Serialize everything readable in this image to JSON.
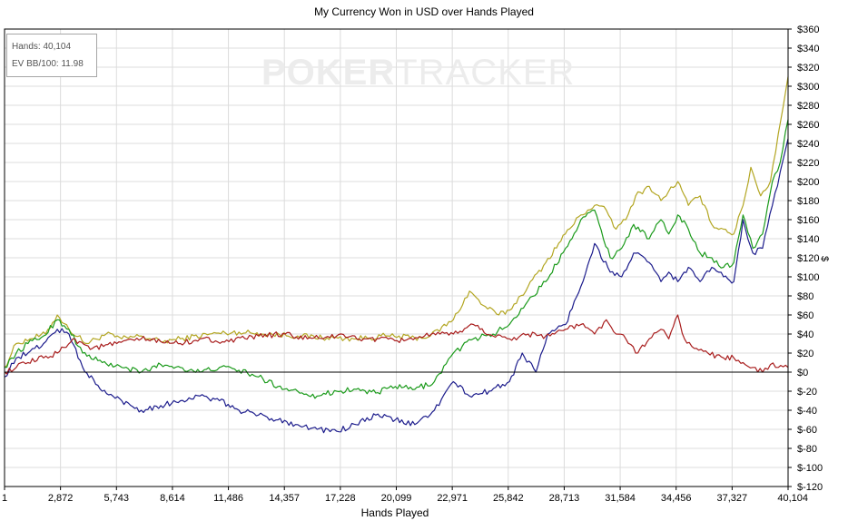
{
  "chart_data": {
    "type": "line",
    "title": "My Currency Won in USD over Hands Played",
    "xlabel": "Hands Played",
    "ylabel": "$",
    "xlim": [
      1,
      40104
    ],
    "ylim": [
      -120,
      360
    ],
    "x_ticks": [
      "1",
      "2,872",
      "5,743",
      "8,614",
      "11,486",
      "14,357",
      "17,228",
      "20,099",
      "22,971",
      "25,842",
      "28,713",
      "31,584",
      "34,456",
      "37,327",
      "40,104"
    ],
    "y_ticks": [
      {
        "value": 360,
        "label": "$360"
      },
      {
        "value": 340,
        "label": "$340"
      },
      {
        "value": 320,
        "label": "$320"
      },
      {
        "value": 300,
        "label": "$300"
      },
      {
        "value": 280,
        "label": "$280"
      },
      {
        "value": 260,
        "label": "$260"
      },
      {
        "value": 240,
        "label": "$240"
      },
      {
        "value": 220,
        "label": "$220"
      },
      {
        "value": 200,
        "label": "$200"
      },
      {
        "value": 180,
        "label": "$180"
      },
      {
        "value": 160,
        "label": "$160"
      },
      {
        "value": 140,
        "label": "$140"
      },
      {
        "value": 120,
        "label": "$120"
      },
      {
        "value": 100,
        "label": "$100"
      },
      {
        "value": 80,
        "label": "$80"
      },
      {
        "value": 60,
        "label": "$60"
      },
      {
        "value": 40,
        "label": "$40"
      },
      {
        "value": 20,
        "label": "$20"
      },
      {
        "value": 0,
        "label": "$0"
      },
      {
        "value": -20,
        "label": "$-20"
      },
      {
        "value": -40,
        "label": "$-40"
      },
      {
        "value": -60,
        "label": "$-60"
      },
      {
        "value": -80,
        "label": "$-80"
      },
      {
        "value": -100,
        "label": "$-100"
      },
      {
        "value": -120,
        "label": "$-120"
      }
    ],
    "grid": true,
    "zero_line": true,
    "series": [
      {
        "color": "#b3a622",
        "x": [
          1,
          600,
          1300,
          2100,
          2700,
          3300,
          4200,
          5200,
          6000,
          7000,
          8000,
          9000,
          10500,
          12000,
          13500,
          15000,
          16500,
          18000,
          19500,
          21000,
          21800,
          22971,
          23800,
          24500,
          25300,
          25842,
          26800,
          27700,
          28700,
          29500,
          30200,
          30800,
          31300,
          31800,
          32300,
          33000,
          33600,
          34000,
          34456,
          35000,
          35600,
          36200,
          36800,
          37327,
          37800,
          38200,
          38700,
          39200,
          39600,
          40104
        ],
        "y": [
          5,
          30,
          35,
          40,
          60,
          45,
          30,
          40,
          35,
          38,
          32,
          35,
          40,
          42,
          40,
          38,
          36,
          35,
          38,
          36,
          38,
          55,
          85,
          70,
          60,
          65,
          90,
          115,
          145,
          165,
          175,
          170,
          150,
          160,
          185,
          195,
          180,
          190,
          200,
          175,
          185,
          155,
          150,
          145,
          175,
          215,
          185,
          200,
          250,
          310
        ]
      },
      {
        "color": "#1a9a1a",
        "x": [
          1,
          600,
          1200,
          2000,
          2700,
          3300,
          4000,
          5000,
          6000,
          7000,
          8000,
          9000,
          10000,
          11000,
          12000,
          13000,
          14000,
          15000,
          16000,
          17000,
          18000,
          19000,
          20000,
          21000,
          22000,
          22971,
          24000,
          25000,
          25842,
          26800,
          27700,
          28713,
          29500,
          30200,
          31000,
          31584,
          32200,
          33000,
          33600,
          34000,
          34456,
          35000,
          35600,
          36200,
          36800,
          37327,
          37800,
          38300,
          38800,
          39300,
          39700,
          40104
        ],
        "y": [
          5,
          20,
          30,
          38,
          55,
          45,
          20,
          10,
          5,
          0,
          8,
          5,
          0,
          5,
          2,
          -5,
          -15,
          -20,
          -25,
          -20,
          -18,
          -22,
          -15,
          -18,
          -10,
          20,
          35,
          40,
          50,
          75,
          95,
          130,
          160,
          170,
          120,
          130,
          155,
          140,
          160,
          145,
          165,
          150,
          125,
          120,
          110,
          115,
          165,
          130,
          145,
          200,
          220,
          265
        ]
      },
      {
        "color": "#1c1c8c",
        "x": [
          1,
          600,
          1200,
          2000,
          2700,
          3300,
          4000,
          5000,
          6000,
          7000,
          8000,
          9000,
          10000,
          11000,
          12000,
          13000,
          14000,
          15000,
          16000,
          17000,
          18000,
          19000,
          20000,
          21000,
          22000,
          22971,
          23800,
          24800,
          25842,
          26500,
          27200,
          27800,
          28713,
          29500,
          30200,
          31000,
          31584,
          32200,
          33000,
          33600,
          34000,
          34456,
          35000,
          35600,
          36200,
          36800,
          37327,
          37800,
          38300,
          38800,
          39300,
          39700,
          40104
        ],
        "y": [
          -5,
          15,
          20,
          30,
          45,
          40,
          5,
          -20,
          -30,
          -40,
          -35,
          -30,
          -25,
          -30,
          -40,
          -45,
          -50,
          -55,
          -60,
          -62,
          -55,
          -45,
          -50,
          -55,
          -40,
          -10,
          -25,
          -20,
          -10,
          20,
          0,
          40,
          50,
          90,
          135,
          105,
          100,
          125,
          115,
          95,
          105,
          95,
          110,
          95,
          110,
          100,
          95,
          160,
          125,
          130,
          175,
          210,
          245
        ]
      },
      {
        "color": "#a81c1c",
        "x": [
          1,
          600,
          1200,
          2000,
          2700,
          3500,
          4500,
          5743,
          7000,
          8000,
          9000,
          10000,
          11486,
          13000,
          14357,
          15500,
          17000,
          18500,
          20099,
          21500,
          22971,
          24000,
          25000,
          25842,
          26800,
          27700,
          28713,
          29500,
          30200,
          30800,
          31300,
          31800,
          32300,
          33000,
          33600,
          34000,
          34456,
          34800,
          35300,
          36000,
          36800,
          37327,
          37800,
          38300,
          38800,
          39200,
          39600,
          40104
        ],
        "y": [
          0,
          5,
          10,
          15,
          20,
          35,
          25,
          30,
          35,
          32,
          30,
          35,
          32,
          38,
          40,
          35,
          38,
          35,
          33,
          38,
          40,
          50,
          38,
          35,
          40,
          38,
          45,
          50,
          40,
          55,
          40,
          35,
          20,
          35,
          45,
          35,
          60,
          35,
          25,
          20,
          15,
          15,
          10,
          5,
          0,
          8,
          5,
          5
        ]
      }
    ]
  },
  "stats": {
    "hands": "Hands: 40,104",
    "ev": "EV BB/100: 11.98"
  },
  "watermark": {
    "bold": "POKER",
    "thin": "TRACKER"
  }
}
